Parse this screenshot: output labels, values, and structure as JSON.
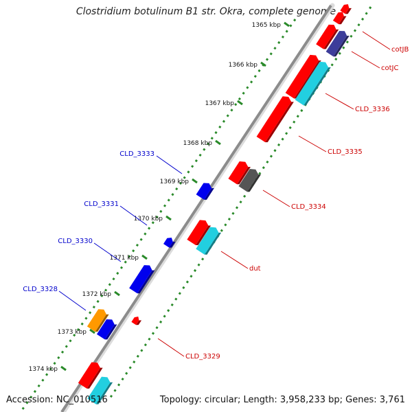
{
  "title": "Clostridium botulinum B1 str. Okra, complete genome",
  "accession": "Accession: NC_010516",
  "topology": "Topology: circular; Length: 3,958,233 bp; Genes: 3,761",
  "colors": {
    "forward": "#ff0000",
    "reverse": "#0000ee",
    "cyan": "#22cfe0",
    "purple": "#3d3d9a",
    "gray": "#555555",
    "orange": "#ff9900",
    "tick_dots": "#2a8a2a",
    "backbone": "#8c8c8c"
  },
  "ticks": [
    {
      "label": "1365 kbp"
    },
    {
      "label": "1366 kbp"
    },
    {
      "label": "1367 kbp"
    },
    {
      "label": "1368 kbp"
    },
    {
      "label": "1369 kbp"
    },
    {
      "label": "1370 kbp"
    },
    {
      "label": "1371 kbp"
    },
    {
      "label": "1372 kbp"
    },
    {
      "label": "1373 kbp"
    },
    {
      "label": "1374 kbp"
    }
  ],
  "gene_labels": [
    {
      "name": "cotJB",
      "strand": "forward"
    },
    {
      "name": "cotJC",
      "strand": "forward"
    },
    {
      "name": "CLD_3336",
      "strand": "forward"
    },
    {
      "name": "CLD_3335",
      "strand": "forward"
    },
    {
      "name": "CLD_3334",
      "strand": "forward"
    },
    {
      "name": "dut",
      "strand": "forward"
    },
    {
      "name": "CLD_3329",
      "strand": "forward"
    },
    {
      "name": "CLD_3333",
      "strand": "reverse"
    },
    {
      "name": "CLD_3331",
      "strand": "reverse"
    },
    {
      "name": "CLD_3330",
      "strand": "reverse"
    },
    {
      "name": "CLD_3328",
      "strand": "reverse"
    }
  ]
}
